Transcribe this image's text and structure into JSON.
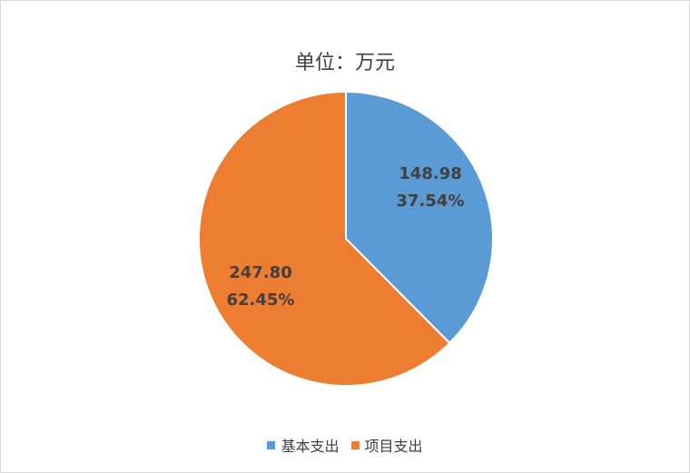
{
  "chart_data": {
    "type": "pie",
    "title": "单位：万元",
    "slices": [
      {
        "name": "基本支出",
        "value": 148.98,
        "value_label": "148.98",
        "percent_label": "37.54%",
        "color": "#5B9BD5"
      },
      {
        "name": "项目支出",
        "value": 247.8,
        "value_label": "247.80",
        "percent_label": "62.45%",
        "color": "#ED7D31"
      }
    ],
    "start_angle": "top, clockwise",
    "legend_position": "bottom"
  }
}
